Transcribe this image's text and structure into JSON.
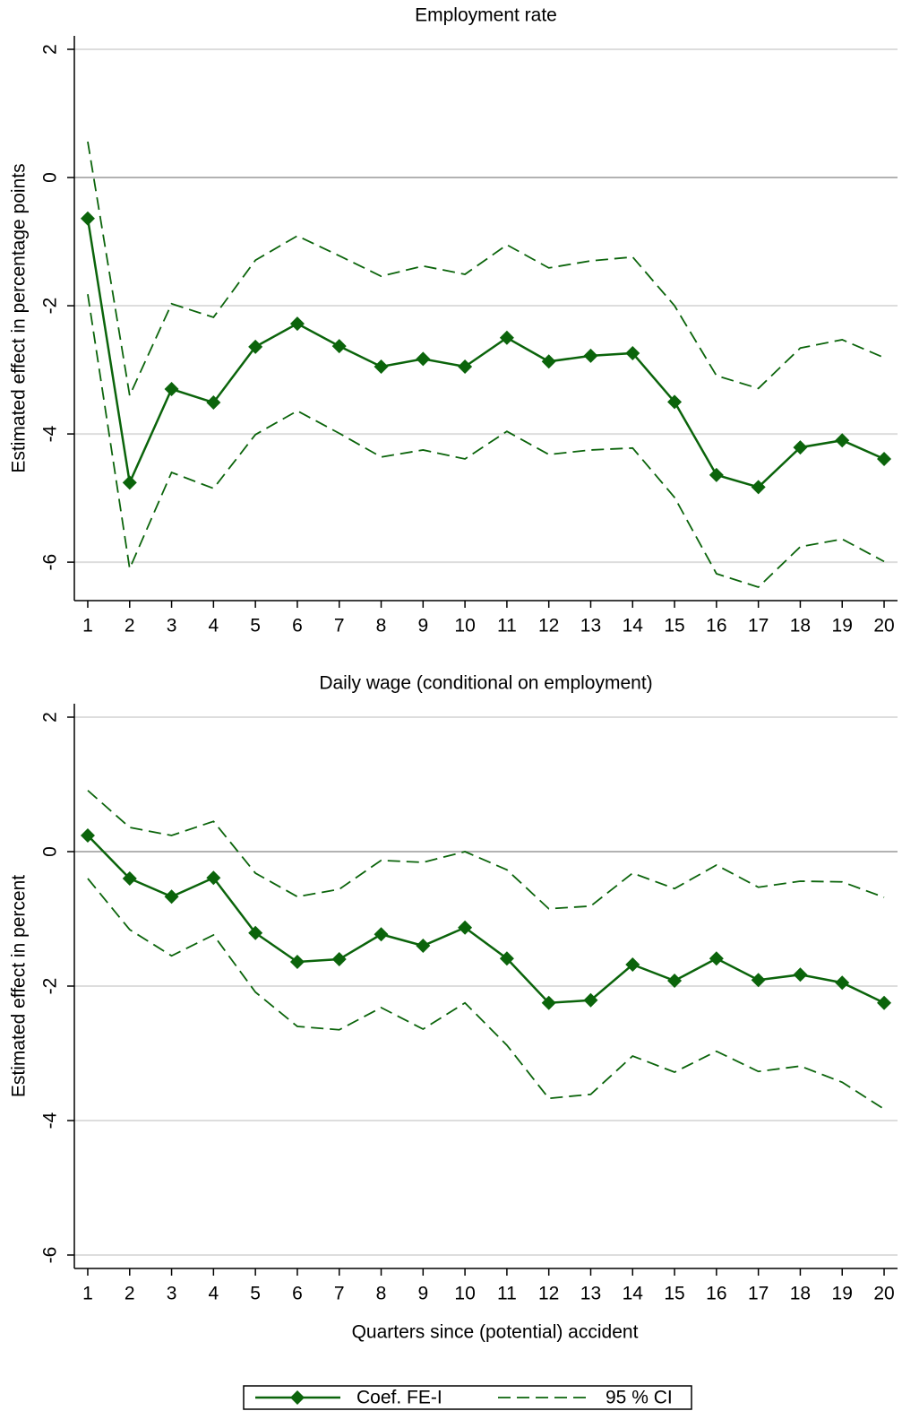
{
  "chart_data": [
    {
      "type": "line",
      "title": "Employment rate",
      "ylabel": "Estimated effect in percentage points",
      "x": [
        1,
        2,
        3,
        4,
        5,
        6,
        7,
        8,
        9,
        10,
        11,
        12,
        13,
        14,
        15,
        16,
        17,
        18,
        19,
        20
      ],
      "xlim": [
        0.68,
        20.32
      ],
      "xticks": [
        1,
        2,
        3,
        4,
        5,
        6,
        7,
        8,
        9,
        10,
        11,
        12,
        13,
        14,
        15,
        16,
        17,
        18,
        19,
        20
      ],
      "ylim": [
        -6.6,
        2.21
      ],
      "yticks": [
        -6,
        -4,
        -2,
        0,
        2
      ],
      "grid": true,
      "series": [
        {
          "color": "#0b640b",
          "values": [
            -0.64,
            -4.76,
            -3.3,
            -3.51,
            -2.64,
            -2.28,
            -2.63,
            -2.95,
            -2.83,
            -2.95,
            -2.5,
            -2.87,
            -2.78,
            -2.74,
            -3.5,
            -4.64,
            -4.83,
            -4.21,
            -4.1,
            -4.39
          ],
          "ci_upper": [
            0.56,
            -3.4,
            -1.97,
            -2.18,
            -1.29,
            -0.91,
            -1.22,
            -1.54,
            -1.38,
            -1.51,
            -1.05,
            -1.41,
            -1.3,
            -1.24,
            -2.0,
            -3.09,
            -3.29,
            -2.66,
            -2.53,
            -2.81
          ],
          "ci_lower": [
            -1.82,
            -6.1,
            -4.6,
            -4.85,
            -4.01,
            -3.64,
            -3.99,
            -4.36,
            -4.25,
            -4.39,
            -3.96,
            -4.32,
            -4.25,
            -4.22,
            -4.99,
            -6.18,
            -6.39,
            -5.76,
            -5.64,
            -5.99
          ]
        }
      ]
    },
    {
      "type": "line",
      "title": "Daily wage (conditional on employment)",
      "ylabel": "Estimated effect in percent",
      "xlabel": "Quarters since (potential) accident",
      "x": [
        1,
        2,
        3,
        4,
        5,
        6,
        7,
        8,
        9,
        10,
        11,
        12,
        13,
        14,
        15,
        16,
        17,
        18,
        19,
        20
      ],
      "xlim": [
        0.68,
        20.32
      ],
      "xticks": [
        1,
        2,
        3,
        4,
        5,
        6,
        7,
        8,
        9,
        10,
        11,
        12,
        13,
        14,
        15,
        16,
        17,
        18,
        19,
        20
      ],
      "ylim": [
        -6.2,
        2.2
      ],
      "yticks": [
        -6,
        -4,
        -2,
        0,
        2
      ],
      "grid": true,
      "series": [
        {
          "name": "Coef. FE-I",
          "ci_name": "95 % CI",
          "color": "#0b640b",
          "values": [
            0.24,
            -0.4,
            -0.67,
            -0.39,
            -1.21,
            -1.64,
            -1.6,
            -1.23,
            -1.4,
            -1.13,
            -1.59,
            -2.25,
            -2.21,
            -1.68,
            -1.92,
            -1.59,
            -1.91,
            -1.83,
            -1.95,
            -2.25
          ],
          "ci_upper": [
            0.91,
            0.36,
            0.24,
            0.45,
            -0.32,
            -0.67,
            -0.56,
            -0.13,
            -0.16,
            0.0,
            -0.27,
            -0.85,
            -0.81,
            -0.32,
            -0.55,
            -0.2,
            -0.53,
            -0.44,
            -0.45,
            -0.68
          ],
          "ci_lower": [
            -0.4,
            -1.16,
            -1.55,
            -1.24,
            -2.09,
            -2.6,
            -2.65,
            -2.32,
            -2.64,
            -2.25,
            -2.88,
            -3.67,
            -3.61,
            -3.04,
            -3.28,
            -2.97,
            -3.27,
            -3.19,
            -3.43,
            -3.83
          ]
        }
      ]
    }
  ]
}
